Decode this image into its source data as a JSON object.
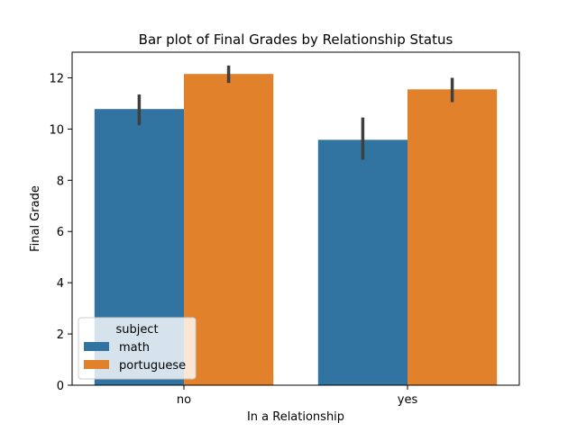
{
  "chart_data": {
    "type": "bar",
    "title": "Bar plot of Final Grades by Relationship Status",
    "xlabel": "In a Relationship",
    "ylabel": "Final Grade",
    "categories": [
      "no",
      "yes"
    ],
    "ylim": [
      0,
      13
    ],
    "yticks": [
      0,
      2,
      4,
      6,
      8,
      10,
      12
    ],
    "legend": {
      "title": "subject",
      "placement": "lower-left"
    },
    "series": [
      {
        "name": "math",
        "color": "#3274a1",
        "values": [
          10.78,
          9.58
        ],
        "ci_low": [
          10.15,
          8.8
        ],
        "ci_high": [
          11.35,
          10.45
        ]
      },
      {
        "name": "portuguese",
        "color": "#e1812c",
        "values": [
          12.15,
          11.55
        ],
        "ci_low": [
          11.8,
          11.05
        ],
        "ci_high": [
          12.48,
          12.0
        ]
      }
    ],
    "error_bar_color": "#3f3f3f",
    "grid": false
  }
}
